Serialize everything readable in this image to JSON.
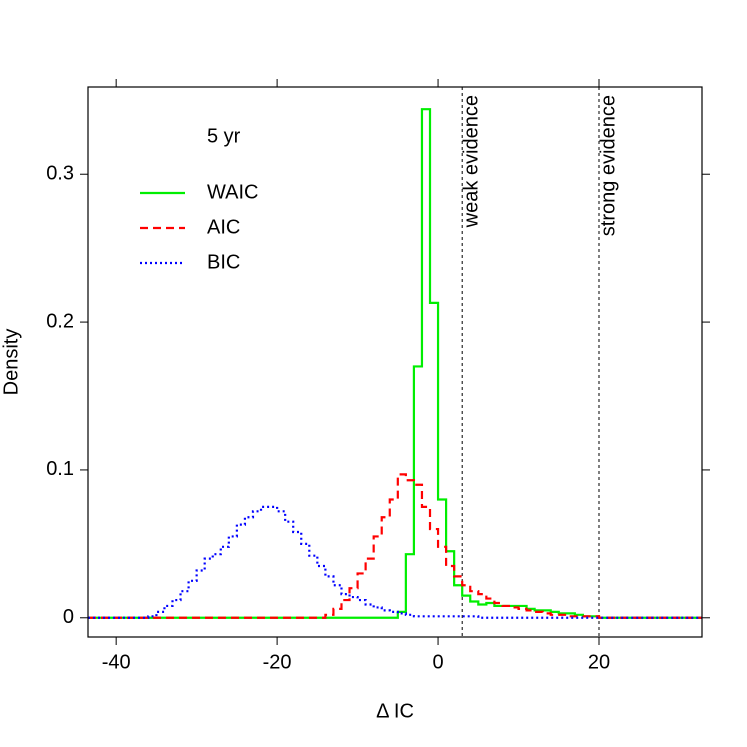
{
  "chart_data": {
    "type": "line",
    "step": "post",
    "annotation": "5 yr",
    "x_label": "Δ IC",
    "y_label": "Density",
    "xlim": [
      -43.5,
      32.8
    ],
    "ylim": [
      -0.013,
      0.359
    ],
    "xticks": [
      -40,
      -20,
      0,
      20
    ],
    "yticks": [
      0,
      0.1,
      0.2,
      0.3
    ],
    "vlines": [
      {
        "x": 3,
        "label": "weak evidence"
      },
      {
        "x": 20,
        "label": "strong evidence"
      }
    ],
    "series": [
      {
        "name": "WAIC",
        "color": "#00ee00",
        "dash": "solid",
        "x": [
          -43.5,
          -5,
          -4,
          -3,
          -2,
          -1,
          0,
          1,
          2,
          3,
          4,
          5,
          6,
          7,
          8,
          9,
          10,
          11,
          12,
          13,
          14,
          15,
          16,
          17,
          18,
          19,
          20,
          32.8
        ],
        "values": [
          0,
          0.004,
          0.043,
          0.17,
          0.344,
          0.213,
          0.08,
          0.045,
          0.022,
          0.015,
          0.011,
          0.009,
          0.01,
          0.008,
          0.008,
          0.008,
          0.008,
          0.006,
          0.005,
          0.005,
          0.004,
          0.003,
          0.003,
          0.002,
          0.001,
          0.001,
          0,
          0
        ]
      },
      {
        "name": "AIC",
        "color": "#ff0000",
        "dash": "dashed",
        "x": [
          -43.5,
          -14,
          -13,
          -12,
          -11,
          -10,
          -9,
          -8,
          -7,
          -6,
          -5,
          -4,
          -3,
          -2,
          -1,
          0,
          1,
          2,
          3,
          4,
          5,
          6,
          7,
          8,
          9,
          10,
          11,
          12,
          13,
          14,
          15,
          16,
          17,
          20,
          32.8
        ],
        "values": [
          0,
          0.002,
          0.006,
          0.012,
          0.02,
          0.03,
          0.04,
          0.055,
          0.068,
          0.08,
          0.097,
          0.093,
          0.09,
          0.075,
          0.06,
          0.048,
          0.035,
          0.028,
          0.022,
          0.018,
          0.016,
          0.013,
          0.01,
          0.008,
          0.007,
          0.006,
          0.005,
          0.004,
          0.003,
          0.002,
          0.002,
          0.001,
          0.001,
          0,
          0
        ]
      },
      {
        "name": "BIC",
        "color": "#0000ff",
        "dash": "dotted",
        "x": [
          -43.5,
          -36,
          -35,
          -34,
          -33,
          -32,
          -31,
          -30,
          -29,
          -28,
          -27,
          -26,
          -25,
          -24,
          -23,
          -22,
          -21,
          -20,
          -19,
          -18,
          -17,
          -16,
          -15,
          -14,
          -13,
          -12,
          -11,
          -10,
          -9,
          -8,
          -7,
          -6,
          -5,
          -4,
          -3,
          5,
          32.8
        ],
        "values": [
          0,
          0.001,
          0.004,
          0.008,
          0.012,
          0.018,
          0.025,
          0.032,
          0.04,
          0.043,
          0.048,
          0.055,
          0.063,
          0.068,
          0.072,
          0.075,
          0.075,
          0.072,
          0.065,
          0.058,
          0.05,
          0.042,
          0.035,
          0.028,
          0.022,
          0.016,
          0.014,
          0.012,
          0.009,
          0.007,
          0.005,
          0.004,
          0.003,
          0.002,
          0.001,
          0,
          0
        ]
      }
    ]
  }
}
